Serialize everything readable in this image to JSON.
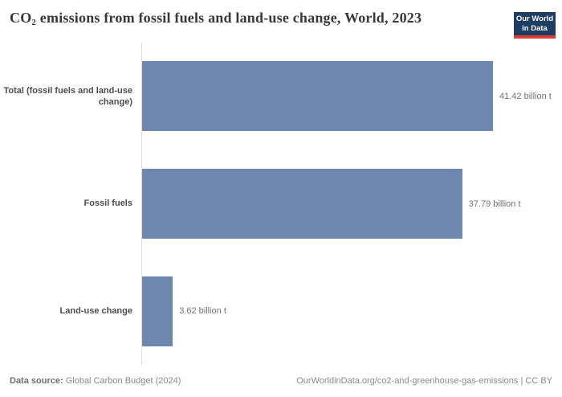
{
  "header": {
    "title_co": "CO",
    "title_sub": "2",
    "title_rest": " emissions from fossil fuels and land-use change, World, 2023",
    "logo": {
      "line1": "Our World",
      "line2": "in Data"
    }
  },
  "chart_data": {
    "type": "bar",
    "orientation": "horizontal",
    "title": "CO2 emissions from fossil fuels and land-use change, World, 2023",
    "categories": [
      "Total (fossil fuels and land-use change)",
      "Fossil fuels",
      "Land-use change"
    ],
    "values": [
      41.42,
      37.79,
      3.62
    ],
    "value_labels": [
      "41.42 billion t",
      "37.79 billion t",
      "3.62 billion t"
    ],
    "unit": "billion t",
    "xlim": [
      0,
      41.42
    ],
    "grid": false,
    "legend": "none"
  },
  "footer": {
    "source_label": "Data source:",
    "source_value": "Global Carbon Budget (2024)",
    "credit": "OurWorldinData.org/co2-and-greenhouse-gas-emissions | CC BY"
  },
  "colors": {
    "bar": "#6e87b1",
    "logo-bg": "#1d3d63",
    "logo-accent": "#dc3e32",
    "axis": "#dcdcdc"
  }
}
